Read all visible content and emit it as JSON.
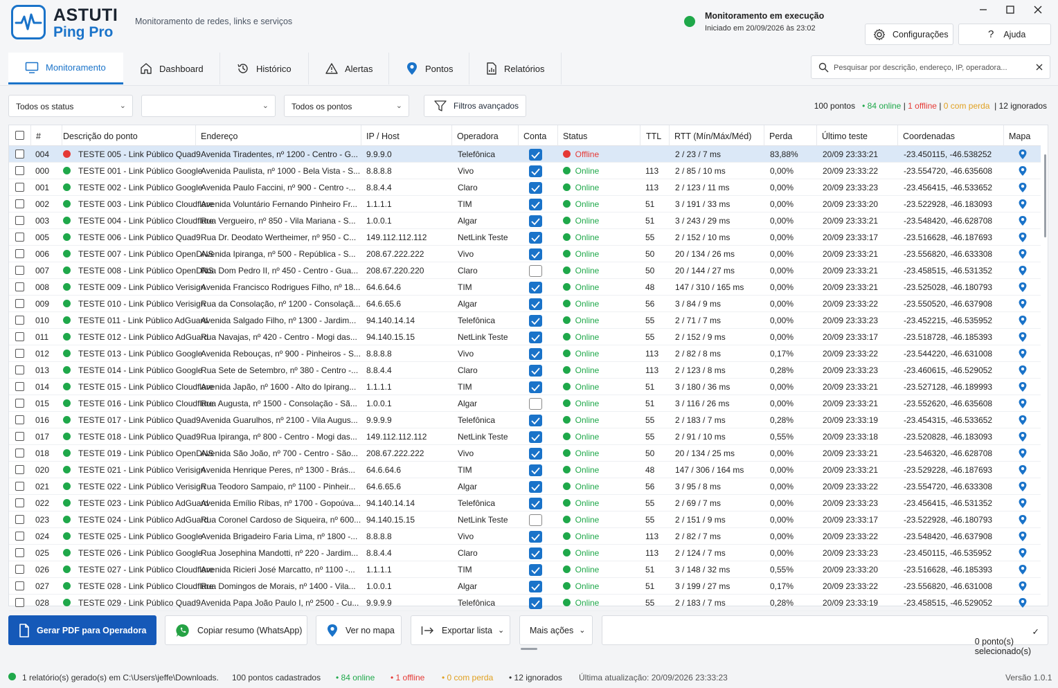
{
  "app": {
    "name_line1": "ASTUTI",
    "name_line2": "Ping Pro",
    "subtitle": "Monitoramento de redes, links e serviços",
    "monitor_title": "Monitoramento em execução",
    "monitor_started": "Iniciado em 20/09/2026 às 23:02",
    "settings_label": "Configurações",
    "help_label": "Ajuda",
    "colors": {
      "accent": "#1a73c9",
      "online": "#1fa84a",
      "offline": "#e53935",
      "loss": "#e0a020"
    }
  },
  "tabs": [
    {
      "label": "Monitoramento",
      "icon": "monitor-icon"
    },
    {
      "label": "Dashboard",
      "icon": "home-icon"
    },
    {
      "label": "Histórico",
      "icon": "history-icon"
    },
    {
      "label": "Alertas",
      "icon": "warning-icon"
    },
    {
      "label": "Pontos",
      "icon": "map-pin-icon"
    },
    {
      "label": "Relatórios",
      "icon": "report-icon"
    }
  ],
  "search": {
    "placeholder": "Pesquisar por descrição, endereço, IP, operadora..."
  },
  "filters": {
    "status_value": "Todos os status",
    "operator_value": "",
    "points_value": "Todos os pontos",
    "advanced_label": "Filtros avançados"
  },
  "summary": {
    "total": "100 pontos",
    "online": "• 84 online",
    "offline": "1 offline",
    "loss": "0 com perda",
    "ignored": "12 ignorados"
  },
  "table": {
    "headers": [
      "#",
      "Descrição do ponto",
      "Endereço",
      "IP / Host",
      "Operadora",
      "Conta",
      "Status",
      "TTL",
      "RTT (Mín/Máx/Méd)",
      "Perda",
      "Último teste",
      "Coordenadas",
      "Mapa"
    ],
    "rows": [
      {
        "id": "004",
        "desc": "TESTE 005 - Link Público Quad9",
        "addr": "Avenida Tiradentes, nº 1200 - Centro - G...",
        "ip": "9.9.9.0",
        "op": "Telefônica",
        "conta": true,
        "status": "Offline",
        "ttl": "",
        "rtt": "2 / 23 / 7 ms",
        "loss": "83,88%",
        "last": "20/09 23:33:21",
        "coord": "-23.450115, -46.538252"
      },
      {
        "id": "000",
        "desc": "TESTE 001 - Link Público Google",
        "addr": "Avenida Paulista, nº 1000 - Bela Vista - S...",
        "ip": "8.8.8.8",
        "op": "Vivo",
        "conta": true,
        "status": "Online",
        "ttl": "113",
        "rtt": "2 / 85 / 10 ms",
        "loss": "0,00%",
        "last": "20/09 23:33:22",
        "coord": "-23.554720, -46.635608"
      },
      {
        "id": "001",
        "desc": "TESTE 002 - Link Público Google",
        "addr": "Avenida Paulo Faccini, nº 900 - Centro -...",
        "ip": "8.8.4.4",
        "op": "Claro",
        "conta": true,
        "status": "Online",
        "ttl": "113",
        "rtt": "2 / 123 / 11 ms",
        "loss": "0,00%",
        "last": "20/09 23:33:23",
        "coord": "-23.456415, -46.533652"
      },
      {
        "id": "002",
        "desc": "TESTE 003 - Link Público Cloudflare",
        "addr": "Avenida Voluntário Fernando Pinheiro Fr...",
        "ip": "1.1.1.1",
        "op": "TIM",
        "conta": true,
        "status": "Online",
        "ttl": "51",
        "rtt": "3 / 191 / 33 ms",
        "loss": "0,00%",
        "last": "20/09 23:33:20",
        "coord": "-23.522928, -46.183093"
      },
      {
        "id": "003",
        "desc": "TESTE 004 - Link Público Cloudflare",
        "addr": "Rua Vergueiro, nº 850 - Vila Mariana - S...",
        "ip": "1.0.0.1",
        "op": "Algar",
        "conta": true,
        "status": "Online",
        "ttl": "51",
        "rtt": "3 / 243 / 29 ms",
        "loss": "0,00%",
        "last": "20/09 23:33:21",
        "coord": "-23.548420, -46.628708"
      },
      {
        "id": "005",
        "desc": "TESTE 006 - Link Público Quad9",
        "addr": "Rua Dr. Deodato Wertheimer, nº 950 - C...",
        "ip": "149.112.112.112",
        "op": "NetLink Teste",
        "conta": true,
        "status": "Online",
        "ttl": "55",
        "rtt": "2 / 152 / 10 ms",
        "loss": "0,00%",
        "last": "20/09 23:33:17",
        "coord": "-23.516628, -46.187693"
      },
      {
        "id": "006",
        "desc": "TESTE 007 - Link Público OpenDNS",
        "addr": "Avenida Ipiranga, nº 500 - República - S...",
        "ip": "208.67.222.222",
        "op": "Vivo",
        "conta": true,
        "status": "Online",
        "ttl": "50",
        "rtt": "20 / 134 / 26 ms",
        "loss": "0,00%",
        "last": "20/09 23:33:21",
        "coord": "-23.556820, -46.633308"
      },
      {
        "id": "007",
        "desc": "TESTE 008 - Link Público OpenDNS",
        "addr": "Rua Dom Pedro II, nº 450 - Centro - Gua...",
        "ip": "208.67.220.220",
        "op": "Claro",
        "conta": false,
        "status": "Online",
        "ttl": "50",
        "rtt": "20 / 144 / 27 ms",
        "loss": "0,00%",
        "last": "20/09 23:33:21",
        "coord": "-23.458515, -46.531352"
      },
      {
        "id": "008",
        "desc": "TESTE 009 - Link Público Verisign",
        "addr": "Avenida Francisco Rodrigues Filho, nº 18...",
        "ip": "64.6.64.6",
        "op": "TIM",
        "conta": true,
        "status": "Online",
        "ttl": "48",
        "rtt": "147 / 310 / 165 ms",
        "loss": "0,00%",
        "last": "20/09 23:33:21",
        "coord": "-23.525028, -46.180793"
      },
      {
        "id": "009",
        "desc": "TESTE 010 - Link Público Verisign",
        "addr": "Rua da Consolação, nº 1200 - Consolaçã...",
        "ip": "64.6.65.6",
        "op": "Algar",
        "conta": true,
        "status": "Online",
        "ttl": "56",
        "rtt": "3 / 84 / 9 ms",
        "loss": "0,00%",
        "last": "20/09 23:33:22",
        "coord": "-23.550520, -46.637908"
      },
      {
        "id": "010",
        "desc": "TESTE 011 - Link Público AdGuard",
        "addr": "Avenida Salgado Filho, nº 1300 - Jardim...",
        "ip": "94.140.14.14",
        "op": "Telefônica",
        "conta": true,
        "status": "Online",
        "ttl": "55",
        "rtt": "2 / 71 / 7 ms",
        "loss": "0,00%",
        "last": "20/09 23:33:23",
        "coord": "-23.452215, -46.535952"
      },
      {
        "id": "011",
        "desc": "TESTE 012 - Link Público AdGuard",
        "addr": "Rua Navajas, nº 420 - Centro - Mogi das...",
        "ip": "94.140.15.15",
        "op": "NetLink Teste",
        "conta": true,
        "status": "Online",
        "ttl": "55",
        "rtt": "2 / 152 / 9 ms",
        "loss": "0,00%",
        "last": "20/09 23:33:17",
        "coord": "-23.518728, -46.185393"
      },
      {
        "id": "012",
        "desc": "TESTE 013 - Link Público Google",
        "addr": "Avenida Rebouças, nº 900 - Pinheiros - S...",
        "ip": "8.8.8.8",
        "op": "Vivo",
        "conta": true,
        "status": "Online",
        "ttl": "113",
        "rtt": "2 / 82 / 8 ms",
        "loss": "0,17%",
        "last": "20/09 23:33:22",
        "coord": "-23.544220, -46.631008"
      },
      {
        "id": "013",
        "desc": "TESTE 014 - Link Público Google",
        "addr": "Rua Sete de Setembro, nº 380 - Centro -...",
        "ip": "8.8.4.4",
        "op": "Claro",
        "conta": true,
        "status": "Online",
        "ttl": "113",
        "rtt": "2 / 123 / 8 ms",
        "loss": "0,28%",
        "last": "20/09 23:33:23",
        "coord": "-23.460615, -46.529052"
      },
      {
        "id": "014",
        "desc": "TESTE 015 - Link Público Cloudflare",
        "addr": "Avenida Japão, nº 1600 - Alto do Ipirang...",
        "ip": "1.1.1.1",
        "op": "TIM",
        "conta": true,
        "status": "Online",
        "ttl": "51",
        "rtt": "3 / 180 / 36 ms",
        "loss": "0,00%",
        "last": "20/09 23:33:21",
        "coord": "-23.527128, -46.189993"
      },
      {
        "id": "015",
        "desc": "TESTE 016 - Link Público Cloudflare",
        "addr": "Rua Augusta, nº 1500 - Consolação - Sã...",
        "ip": "1.0.0.1",
        "op": "Algar",
        "conta": false,
        "status": "Online",
        "ttl": "51",
        "rtt": "3 / 116 / 26 ms",
        "loss": "0,00%",
        "last": "20/09 23:33:21",
        "coord": "-23.552620, -46.635608"
      },
      {
        "id": "016",
        "desc": "TESTE 017 - Link Público Quad9",
        "addr": "Avenida Guarulhos, nº 2100 - Vila Augus...",
        "ip": "9.9.9.9",
        "op": "Telefônica",
        "conta": true,
        "status": "Online",
        "ttl": "55",
        "rtt": "2 / 183 / 7 ms",
        "loss": "0,28%",
        "last": "20/09 23:33:19",
        "coord": "-23.454315, -46.533652"
      },
      {
        "id": "017",
        "desc": "TESTE 018 - Link Público Quad9",
        "addr": "Rua Ipiranga, nº 800 - Centro - Mogi das...",
        "ip": "149.112.112.112",
        "op": "NetLink Teste",
        "conta": true,
        "status": "Online",
        "ttl": "55",
        "rtt": "2 / 91 / 10 ms",
        "loss": "0,55%",
        "last": "20/09 23:33:18",
        "coord": "-23.520828, -46.183093"
      },
      {
        "id": "018",
        "desc": "TESTE 019 - Link Público OpenDNS",
        "addr": "Avenida São João, nº 700 - Centro - São...",
        "ip": "208.67.222.222",
        "op": "Vivo",
        "conta": true,
        "status": "Online",
        "ttl": "50",
        "rtt": "20 / 134 / 25 ms",
        "loss": "0,00%",
        "last": "20/09 23:33:21",
        "coord": "-23.546320, -46.628708"
      },
      {
        "id": "020",
        "desc": "TESTE 021 - Link Público Verisign",
        "addr": "Avenida Henrique Peres, nº 1300 - Brás...",
        "ip": "64.6.64.6",
        "op": "TIM",
        "conta": true,
        "status": "Online",
        "ttl": "48",
        "rtt": "147 / 306 / 164 ms",
        "loss": "0,00%",
        "last": "20/09 23:33:21",
        "coord": "-23.529228, -46.187693"
      },
      {
        "id": "021",
        "desc": "TESTE 022 - Link Público Verisign",
        "addr": "Rua Teodoro Sampaio, nº 1100 - Pinheir...",
        "ip": "64.6.65.6",
        "op": "Algar",
        "conta": true,
        "status": "Online",
        "ttl": "56",
        "rtt": "3 / 95 / 8 ms",
        "loss": "0,00%",
        "last": "20/09 23:33:22",
        "coord": "-23.554720, -46.633308"
      },
      {
        "id": "022",
        "desc": "TESTE 023 - Link Público AdGuard",
        "addr": "Avenida Emílio Ribas, nº 1700 - Gopoúva...",
        "ip": "94.140.14.14",
        "op": "Telefônica",
        "conta": true,
        "status": "Online",
        "ttl": "55",
        "rtt": "2 / 69 / 7 ms",
        "loss": "0,00%",
        "last": "20/09 23:33:23",
        "coord": "-23.456415, -46.531352"
      },
      {
        "id": "023",
        "desc": "TESTE 024 - Link Público AdGuard",
        "addr": "Rua Coronel Cardoso de Siqueira, nº 600...",
        "ip": "94.140.15.15",
        "op": "NetLink Teste",
        "conta": false,
        "status": "Online",
        "ttl": "55",
        "rtt": "2 / 151 / 9 ms",
        "loss": "0,00%",
        "last": "20/09 23:33:17",
        "coord": "-23.522928, -46.180793"
      },
      {
        "id": "024",
        "desc": "TESTE 025 - Link Público Google",
        "addr": "Avenida Brigadeiro Faria Lima, nº 1800 -...",
        "ip": "8.8.8.8",
        "op": "Vivo",
        "conta": true,
        "status": "Online",
        "ttl": "113",
        "rtt": "2 / 82 / 7 ms",
        "loss": "0,00%",
        "last": "20/09 23:33:22",
        "coord": "-23.548420, -46.637908"
      },
      {
        "id": "025",
        "desc": "TESTE 026 - Link Público Google",
        "addr": "Rua Josephina Mandotti, nº 220 - Jardim...",
        "ip": "8.8.4.4",
        "op": "Claro",
        "conta": true,
        "status": "Online",
        "ttl": "113",
        "rtt": "2 / 124 / 7 ms",
        "loss": "0,00%",
        "last": "20/09 23:33:23",
        "coord": "-23.450115, -46.535952"
      },
      {
        "id": "026",
        "desc": "TESTE 027 - Link Público Cloudflare",
        "addr": "Avenida Ricieri José Marcatto, nº 1100 -...",
        "ip": "1.1.1.1",
        "op": "TIM",
        "conta": true,
        "status": "Online",
        "ttl": "51",
        "rtt": "3 / 148 / 32 ms",
        "loss": "0,55%",
        "last": "20/09 23:33:20",
        "coord": "-23.516628, -46.185393"
      },
      {
        "id": "027",
        "desc": "TESTE 028 - Link Público Cloudflare",
        "addr": "Rua Domingos de Morais, nº 1400 - Vila...",
        "ip": "1.0.0.1",
        "op": "Algar",
        "conta": true,
        "status": "Online",
        "ttl": "51",
        "rtt": "3 / 199 / 27 ms",
        "loss": "0,17%",
        "last": "20/09 23:33:22",
        "coord": "-23.556820, -46.631008"
      },
      {
        "id": "028",
        "desc": "TESTE 029 - Link Público Quad9",
        "addr": "Avenida Papa João Paulo I, nº 2500 - Cu...",
        "ip": "9.9.9.9",
        "op": "Telefônica",
        "conta": true,
        "status": "Online",
        "ttl": "55",
        "rtt": "2 / 183 / 7 ms",
        "loss": "0,28%",
        "last": "20/09 23:33:19",
        "coord": "-23.458515, -46.529052"
      }
    ]
  },
  "actions": {
    "pdf": "Gerar PDF para Operadora",
    "whatsapp": "Copiar resumo (WhatsApp)",
    "map": "Ver no mapa",
    "export": "Exportar lista",
    "more": "Mais ações",
    "selected": "0 ponto(s) selecionado(s)"
  },
  "statusbar": {
    "report": "1 relatório(s) gerado(s) em C:\\Users\\jeffe\\Downloads.",
    "registered": "100 pontos cadastrados",
    "online": "• 84 online",
    "offline": "• 1 offline",
    "loss": "• 0 com perda",
    "ignored": "• 12 ignorados",
    "updated": "Última atualização: 20/09/2026 23:33:23",
    "version": "Versão 1.0.1"
  }
}
